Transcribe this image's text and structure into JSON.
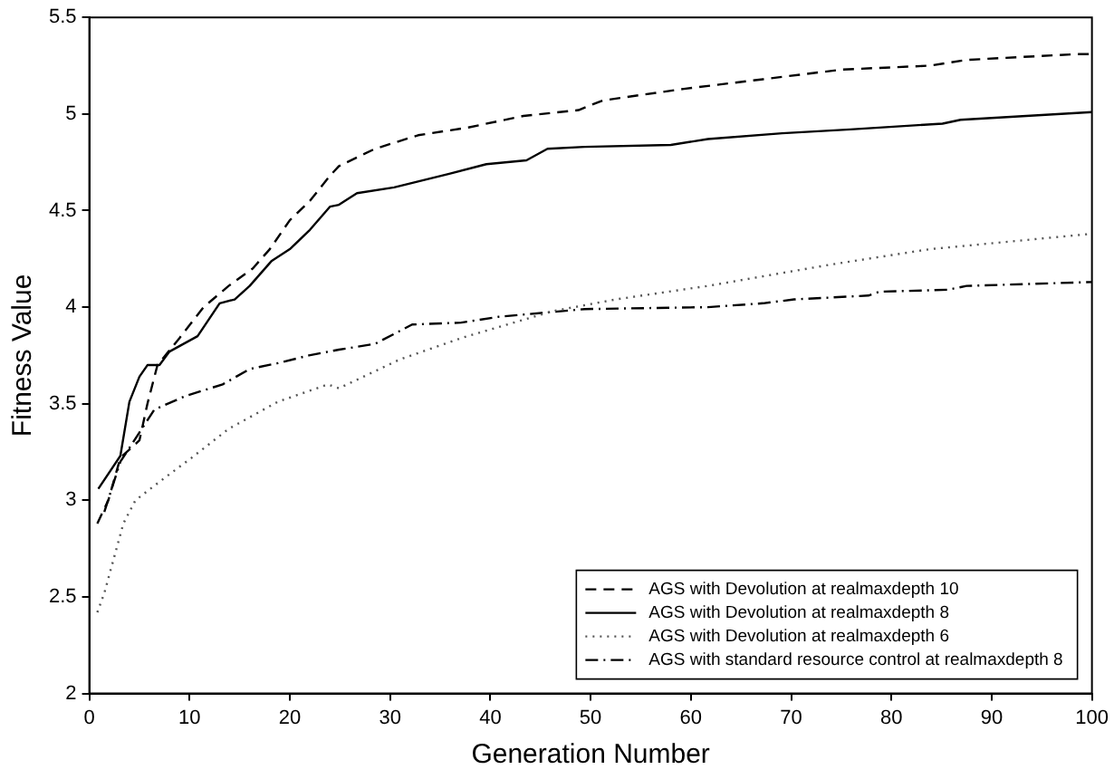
{
  "chart_data": {
    "type": "line",
    "xlabel": "Generation Number",
    "ylabel": "Fitness Value",
    "xlim": [
      0,
      100
    ],
    "ylim": [
      2,
      5.5
    ],
    "xticks": [
      0,
      10,
      20,
      30,
      40,
      50,
      60,
      70,
      80,
      90,
      100
    ],
    "yticks": [
      2,
      2.5,
      3,
      3.5,
      4,
      4.5,
      5,
      5.5
    ],
    "grid": false,
    "legend": "bottom right",
    "marker": "none",
    "series": [
      {
        "name": "AGS with Devolution at realmaxdepth 10",
        "color": "#000000",
        "line_style": "dashed",
        "x": [
          0.8,
          1.9,
          3.1,
          5,
          5.8,
          6.8,
          9,
          11.4,
          13.9,
          16.3,
          18,
          20,
          22,
          24,
          24.9,
          28.5,
          32.8,
          37.8,
          43.3,
          48.8,
          51.2,
          59.3,
          67.2,
          75.1,
          83.8,
          87.5,
          98.5,
          100
        ],
        "values": [
          2.88,
          3.0,
          3.22,
          3.31,
          3.5,
          3.7,
          3.84,
          4.0,
          4.11,
          4.2,
          4.3,
          4.45,
          4.55,
          4.68,
          4.73,
          4.82,
          4.89,
          4.93,
          4.99,
          5.02,
          5.07,
          5.13,
          5.18,
          5.23,
          5.25,
          5.28,
          5.31,
          5.31
        ]
      },
      {
        "name": "AGS with Devolution at realmaxdepth 8",
        "color": "#000000",
        "line_style": "solid",
        "x": [
          0.9,
          3.1,
          4,
          5,
          5.8,
          7,
          8,
          10.8,
          13,
          14.5,
          16,
          18.2,
          20,
          22,
          24,
          24.9,
          26.7,
          30.4,
          35.9,
          39.6,
          43.6,
          45.7,
          49.4,
          58,
          61.7,
          69.1,
          75.9,
          85.1,
          86.9,
          100
        ],
        "values": [
          3.06,
          3.23,
          3.51,
          3.64,
          3.7,
          3.7,
          3.77,
          3.85,
          4.02,
          4.04,
          4.11,
          4.24,
          4.3,
          4.4,
          4.52,
          4.53,
          4.59,
          4.62,
          4.69,
          4.74,
          4.76,
          4.82,
          4.83,
          4.84,
          4.87,
          4.9,
          4.92,
          4.95,
          4.97,
          5.01
        ]
      },
      {
        "name": "AGS with Devolution at realmaxdepth 6",
        "color": "#555555",
        "line_style": "dotted",
        "x": [
          0.8,
          1.5,
          3.4,
          4.6,
          7.1,
          10.2,
          13.9,
          18.8,
          23.8,
          24.9,
          31,
          37.1,
          46.3,
          52.5,
          61.7,
          73.9,
          83.8,
          100
        ],
        "values": [
          2.42,
          2.52,
          2.88,
          3.0,
          3.1,
          3.22,
          3.37,
          3.51,
          3.6,
          3.58,
          3.73,
          3.84,
          3.98,
          4.04,
          4.11,
          4.22,
          4.3,
          4.38
        ]
      },
      {
        "name": "AGS with standard resource control at realmaxdepth 8",
        "color": "#000000",
        "line_style": "dashdot",
        "x": [
          1.5,
          3.1,
          6.5,
          9.6,
          13.3,
          16,
          18.8,
          21.9,
          24.9,
          28.5,
          32.2,
          37.1,
          40.8,
          45.1,
          49.4,
          61.7,
          67.2,
          70.3,
          77.7,
          78.8,
          85.6,
          87.5,
          100
        ],
        "values": [
          2.94,
          3.2,
          3.47,
          3.54,
          3.6,
          3.68,
          3.71,
          3.75,
          3.78,
          3.81,
          3.91,
          3.92,
          3.95,
          3.97,
          3.99,
          4.0,
          4.02,
          4.04,
          4.06,
          4.08,
          4.09,
          4.11,
          4.13
        ]
      }
    ]
  }
}
